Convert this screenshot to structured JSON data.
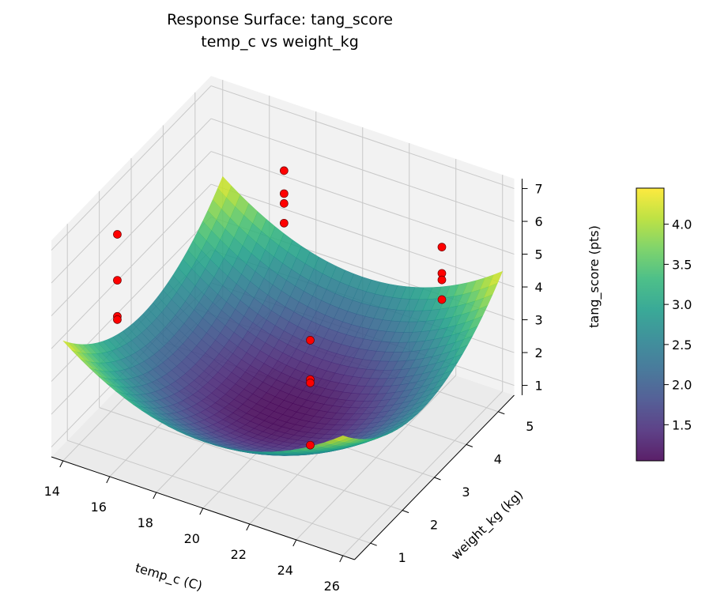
{
  "chart_data": {
    "type": "surface",
    "title": "Response Surface: tang_score",
    "subtitle": "temp_c vs weight_kg",
    "xlabel": "temp_c (C)",
    "ylabel": "weight_kg (kg)",
    "zlabel": "tang_score (pts)",
    "xlim": [
      13.5,
      26.5
    ],
    "ylim": [
      0.5,
      5.5
    ],
    "zlim": [
      0.7,
      7.3
    ],
    "xticks": [
      14,
      16,
      18,
      20,
      22,
      24,
      26
    ],
    "yticks": [
      1,
      2,
      3,
      4,
      5
    ],
    "zticks": [
      1,
      2,
      3,
      4,
      5,
      6,
      7
    ],
    "grid": true,
    "colormap": "viridis",
    "surface_model": {
      "z_min": 1.05,
      "center_temp": 20,
      "center_weight": 3,
      "temp_coef": 0.045,
      "weight_coef": 0.27
    },
    "colorbar": {
      "range": [
        1.05,
        4.45
      ],
      "ticks": [
        1.5,
        2.0,
        2.5,
        3.0,
        3.5,
        4.0
      ],
      "tick_labels": [
        "1.5",
        "2.0",
        "2.5",
        "3.0",
        "3.5",
        "4.0"
      ]
    },
    "scatter": {
      "color": "#ff0000",
      "points": [
        {
          "x": 14,
          "y": 2.2,
          "z": 5.9
        },
        {
          "x": 14,
          "y": 2.2,
          "z": 4.5
        },
        {
          "x": 14,
          "y": 2.2,
          "z": 3.4
        },
        {
          "x": 14,
          "y": 2.2,
          "z": 3.3
        },
        {
          "x": 18,
          "y": 4.5,
          "z": 6.5
        },
        {
          "x": 18,
          "y": 4.5,
          "z": 5.8
        },
        {
          "x": 18,
          "y": 4.5,
          "z": 5.5
        },
        {
          "x": 18,
          "y": 4.5,
          "z": 4.9
        },
        {
          "x": 22,
          "y": 2.4,
          "z": 4.4
        },
        {
          "x": 22,
          "y": 2.4,
          "z": 3.2
        },
        {
          "x": 22,
          "y": 2.4,
          "z": 3.1
        },
        {
          "x": 22,
          "y": 2.4,
          "z": 1.2
        },
        {
          "x": 26,
          "y": 3.6,
          "z": 7.0
        },
        {
          "x": 26,
          "y": 3.6,
          "z": 6.2
        },
        {
          "x": 26,
          "y": 3.6,
          "z": 6.0
        },
        {
          "x": 26,
          "y": 3.6,
          "z": 5.4
        }
      ]
    }
  }
}
